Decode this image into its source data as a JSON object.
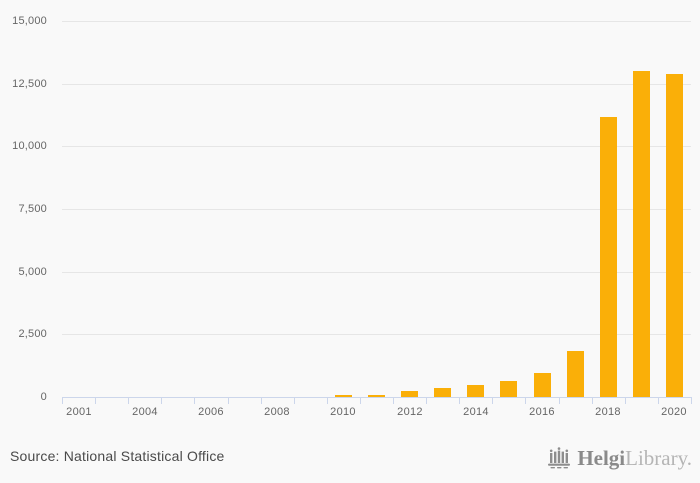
{
  "chart_data": {
    "type": "bar",
    "title": "",
    "xlabel": "",
    "ylabel": "",
    "categories": [
      "2001",
      "2003",
      "2004",
      "2005",
      "2006",
      "2007",
      "2008",
      "2009",
      "2010",
      "2011",
      "2012",
      "2013",
      "2014",
      "2015",
      "2016",
      "2017",
      "2018",
      "2019",
      "2020"
    ],
    "values": [
      0,
      0,
      0,
      0,
      0,
      0,
      0,
      0,
      80,
      90,
      230,
      370,
      465,
      650,
      955,
      1850,
      11170,
      13020,
      12870
    ],
    "x_tick_label_indices": [
      0,
      2,
      4,
      6,
      8,
      10,
      12,
      14,
      16,
      18
    ],
    "x_tick_labels_shown": [
      "2001",
      "2004",
      "2006",
      "2008",
      "2010",
      "2012",
      "2014",
      "2016",
      "2018",
      "2020"
    ],
    "ylim": [
      0,
      15000
    ],
    "ytick_interval": 2500,
    "ytick_labels": [
      "0",
      "2,500",
      "5,000",
      "7,500",
      "10,000",
      "12,500",
      "15,000"
    ],
    "grid": true,
    "legend": "none",
    "colors": {
      "bar": "#faaf08",
      "gridline": "#e6e6e6",
      "axis": "#ccd6eb",
      "tick_label": "#666666",
      "background": "#f9f9f9"
    }
  },
  "footer": {
    "source": "Source: National Statistical Office",
    "brand_bold": "Helgi",
    "brand_light": "Library."
  }
}
